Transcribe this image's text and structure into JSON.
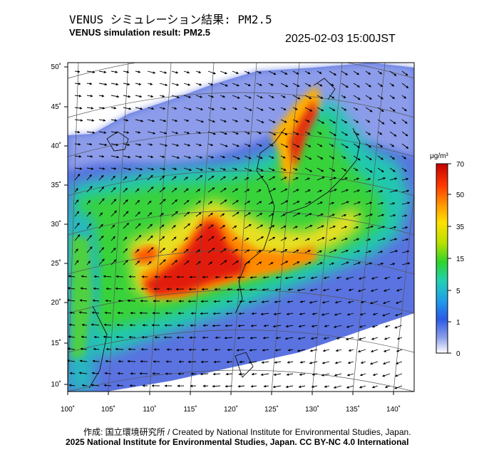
{
  "title_jp": "VENUS シミュレーション結果: PM2.5",
  "title_en": "VENUS simulation result: PM2.5",
  "timestamp": "2025-02-03 15:00JST",
  "axes": {
    "x_ticks": [
      "100˚",
      "105˚",
      "110˚",
      "115˚",
      "120˚",
      "125˚",
      "130˚",
      "135˚",
      "140˚"
    ],
    "y_ticks": [
      "50˚",
      "45˚",
      "40˚",
      "35˚",
      "30˚",
      "25˚",
      "20˚",
      "15˚",
      "10˚"
    ],
    "lon_range": [
      100,
      142
    ],
    "lat_range": [
      9,
      51
    ]
  },
  "colorbar": {
    "unit": "μg/m³",
    "labels": [
      "70",
      "50",
      "35",
      "15",
      "5",
      "1",
      "0"
    ],
    "colors": [
      "#d7191c",
      "#f7941d",
      "#ffd700",
      "#7bd12a",
      "#1fc1c1",
      "#1e7de0",
      "#8fa3f0",
      "#ffffff"
    ]
  },
  "footer": {
    "credit": "作成: 国立環境研究所 / Created by National Institute for Environmental Studies, Japan.",
    "copyright": "2025 National Institute for Environmental Studies, Japan. CC BY-NC 4.0 International"
  }
}
